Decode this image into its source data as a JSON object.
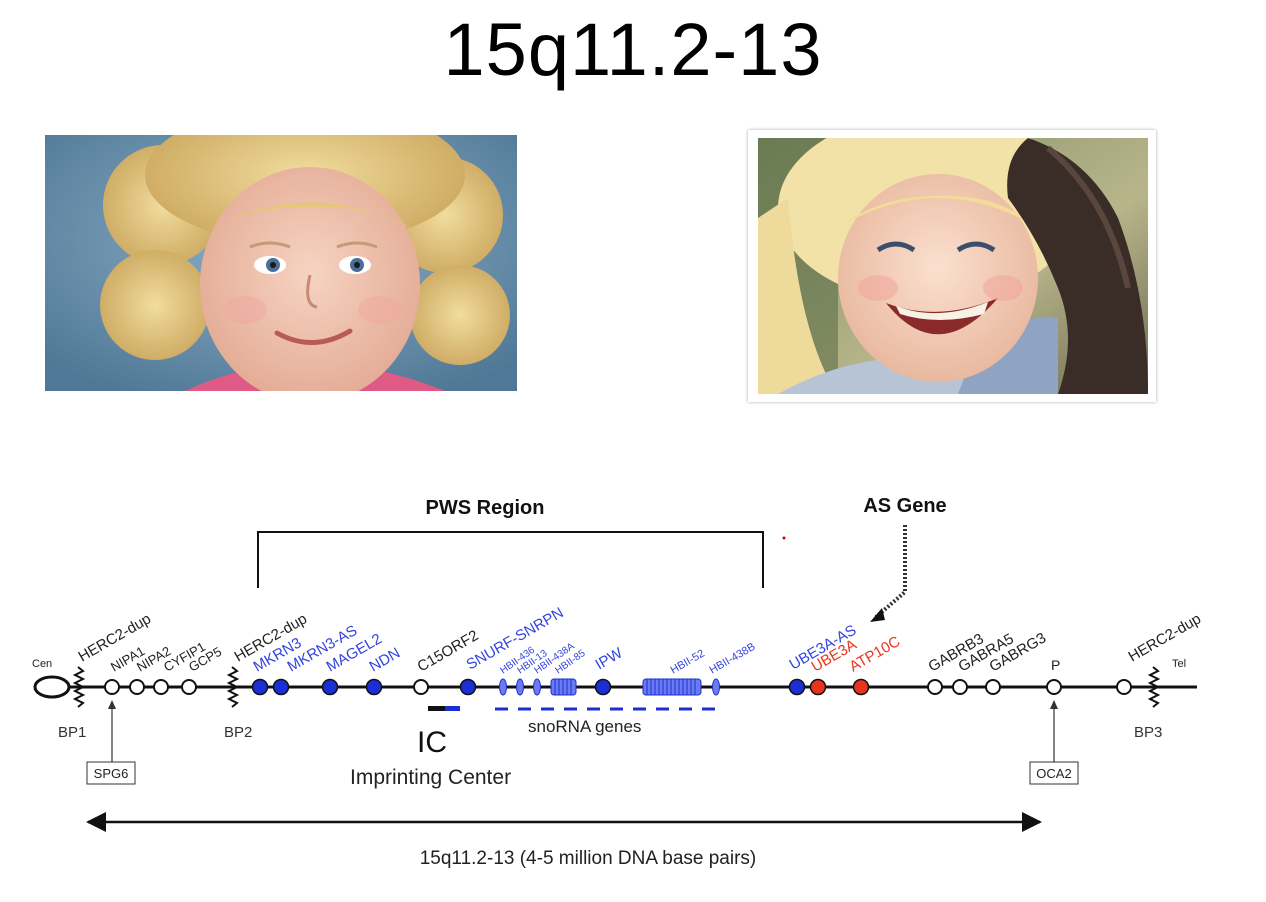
{
  "title": "15q11.2-13",
  "photos": {
    "left": {
      "subject": "child-portrait-smiling"
    },
    "right": {
      "subject": "child-laughing-hugging-adult"
    }
  },
  "diagram": {
    "pws_label": "PWS Region",
    "as_label": "AS Gene",
    "cen_label": "Cen",
    "tel_label": "Tel",
    "breakpoints": [
      "BP1",
      "BP2",
      "BP3"
    ],
    "genes": [
      {
        "label": "HERC2-dup",
        "color": "#222222"
      },
      {
        "label": "NIPA1",
        "color": "#222222"
      },
      {
        "label": "NIPA2",
        "color": "#222222"
      },
      {
        "label": "CYFIP1",
        "color": "#222222"
      },
      {
        "label": "GCP5",
        "color": "#222222"
      },
      {
        "label": "HERC2-dup",
        "color": "#222222"
      },
      {
        "label": "MKRN3",
        "color": "#3344dd"
      },
      {
        "label": "MKRN3-AS",
        "color": "#3344dd"
      },
      {
        "label": "MAGEL2",
        "color": "#3344dd"
      },
      {
        "label": "NDN",
        "color": "#3344dd"
      },
      {
        "label": "C15ORF2",
        "color": "#222222"
      },
      {
        "label": "SNURF-SNRPN",
        "color": "#3344dd"
      },
      {
        "label": "HBII-436",
        "color": "#3344dd"
      },
      {
        "label": "HBII-13",
        "color": "#3344dd"
      },
      {
        "label": "HBII-438A",
        "color": "#3344dd"
      },
      {
        "label": "HBII-85",
        "color": "#3344dd"
      },
      {
        "label": "IPW",
        "color": "#3344dd"
      },
      {
        "label": "HBII-52",
        "color": "#3344dd"
      },
      {
        "label": "HBII-438B",
        "color": "#3344dd"
      },
      {
        "label": "UBE3A-AS",
        "color": "#3344dd"
      },
      {
        "label": "UBE3A",
        "color": "#e8341c"
      },
      {
        "label": "ATP10C",
        "color": "#e8341c"
      },
      {
        "label": "GABRB3",
        "color": "#222222"
      },
      {
        "label": "GABRA5",
        "color": "#222222"
      },
      {
        "label": "GABRG3",
        "color": "#222222"
      },
      {
        "label": "P",
        "color": "#222222"
      },
      {
        "label": "HERC2-dup",
        "color": "#222222"
      }
    ],
    "spg6_label": "SPG6",
    "oca2_label": "OCA2",
    "ic_label": "IC",
    "ic_full": "Imprinting Center",
    "snorna_label": "snoRNA genes",
    "span_label": "15q11.2-13 (4-5 million DNA base pairs)"
  },
  "colors": {
    "blue": "#1a2fd6",
    "red": "#e8341c",
    "black": "#111111",
    "label_blue": "#3344dd"
  }
}
